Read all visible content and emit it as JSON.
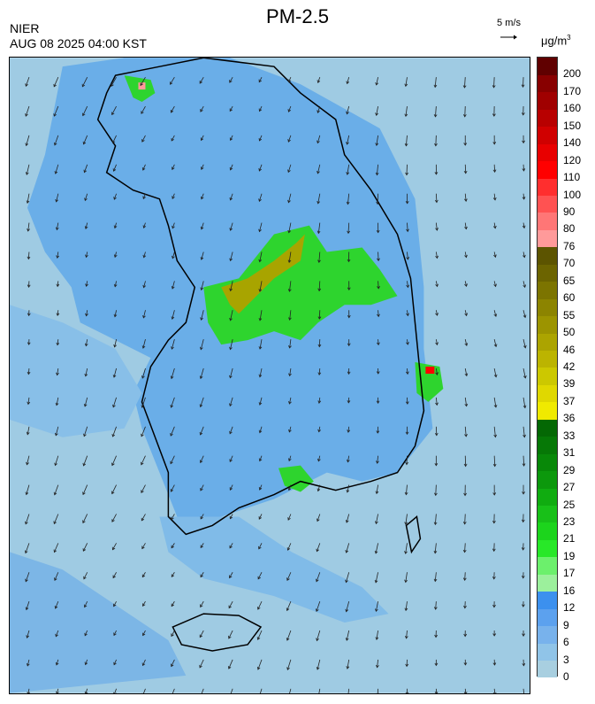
{
  "header": {
    "title": "PM-2.5",
    "org": "NIER",
    "timestamp": "AUG 08 2025 04:00 KST",
    "wind_scale_label": "5 m/s",
    "unit_base": "μg/m",
    "unit_exp": "3"
  },
  "legend": {
    "labels": [
      "0",
      "3",
      "6",
      "9",
      "12",
      "16",
      "17",
      "19",
      "21",
      "23",
      "25",
      "27",
      "29",
      "31",
      "33",
      "36",
      "37",
      "39",
      "42",
      "46",
      "50",
      "55",
      "60",
      "65",
      "70",
      "76",
      "80",
      "90",
      "100",
      "110",
      "120",
      "140",
      "150",
      "160",
      "170",
      "200"
    ],
    "colors": [
      "#a8cfe0",
      "#90c4e8",
      "#78b2ec",
      "#5ca1ee",
      "#3c90ee",
      "#9cf09c",
      "#6cf06c",
      "#28e828",
      "#1cd41c",
      "#18c018",
      "#10ac10",
      "#0c980c",
      "#088808",
      "#067806",
      "#046804",
      "#f0ea00",
      "#e0d800",
      "#ccc800",
      "#bcb400",
      "#aca400",
      "#9c9400",
      "#8c8400",
      "#7c7400",
      "#6c6400",
      "#5c5400",
      "#ff9a9a",
      "#ff7676",
      "#ff5252",
      "#ff2e2e",
      "#ff0000",
      "#e80000",
      "#d00000",
      "#b80000",
      "#a00000",
      "#880000",
      "#600000"
    ]
  },
  "map": {
    "layer": "pm2.5-concentration",
    "wind": "vectors"
  }
}
